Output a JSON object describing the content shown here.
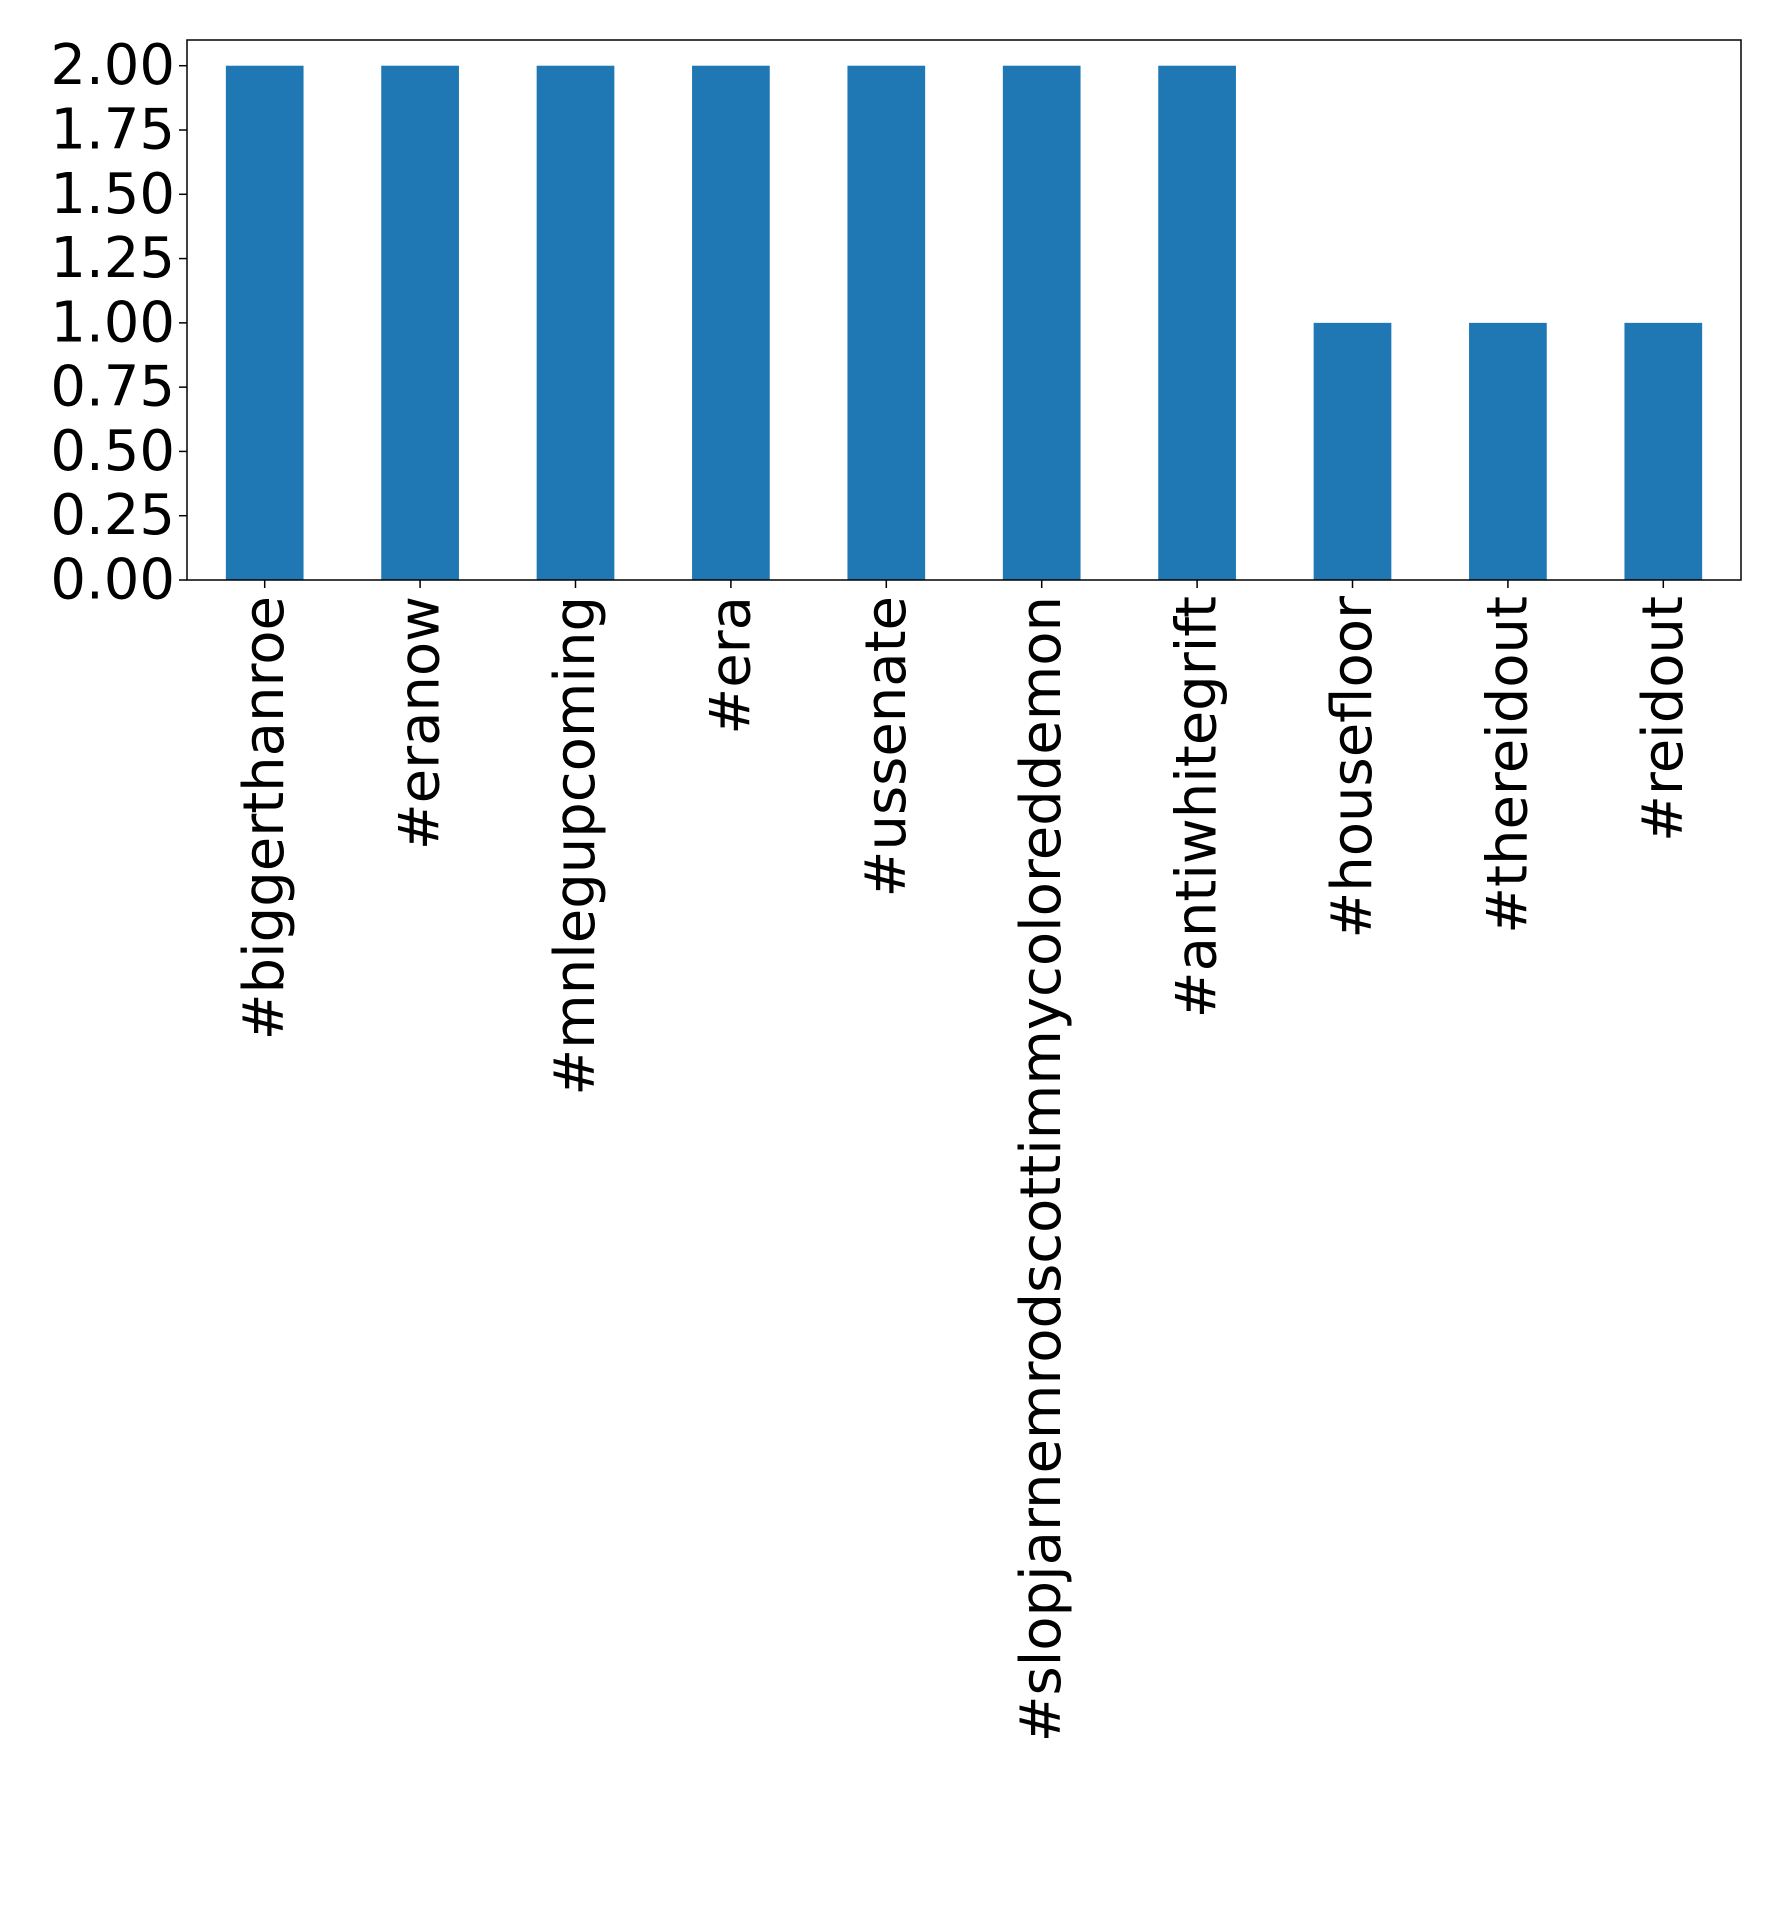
{
  "chart_data": {
    "type": "bar",
    "categories": [
      "#biggerthanroe",
      "#eranow",
      "#mnlegupcoming",
      "#era",
      "#ussenate",
      "#slopjarnemrodscottimmycoloreddemon",
      "#antiwhitegrift",
      "#housefloor",
      "#thereidout",
      "#reidout"
    ],
    "values": [
      2,
      2,
      2,
      2,
      2,
      2,
      2,
      1,
      1,
      1
    ],
    "ylim": [
      0,
      2.1
    ],
    "yticks": [
      "0.00",
      "0.25",
      "0.50",
      "0.75",
      "1.00",
      "1.25",
      "1.50",
      "1.75",
      "2.00"
    ],
    "title": "",
    "xlabel": "",
    "ylabel": "",
    "grid": false,
    "bar_color": "#1f77b4"
  }
}
